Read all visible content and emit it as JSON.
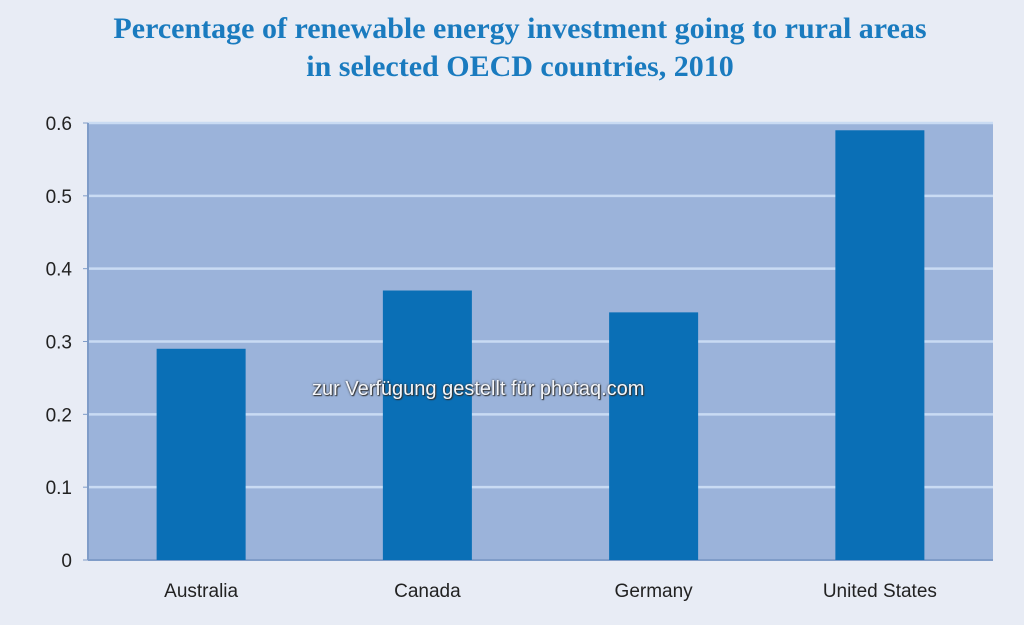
{
  "chart_data": {
    "type": "bar",
    "title_line1": "Percentage of renewable energy investment going to rural areas",
    "title_line2": "in selected OECD countries, 2010",
    "categories": [
      "Australia",
      "Canada",
      "Germany",
      "United States"
    ],
    "values": [
      0.29,
      0.37,
      0.34,
      0.59
    ],
    "xlabel": "",
    "ylabel": "",
    "ylim": [
      0,
      0.6
    ],
    "yticks": [
      "0",
      "0.1",
      "0.2",
      "0.3",
      "0.4",
      "0.5",
      "0.6"
    ],
    "grid": true,
    "colors": {
      "bar": "#0a6fb6",
      "plot_bg": "#9bb3da",
      "grid": "#c9dbf3",
      "title": "#1a7bbf"
    }
  },
  "watermark": "zur Verfügung gestellt für photaq.com"
}
